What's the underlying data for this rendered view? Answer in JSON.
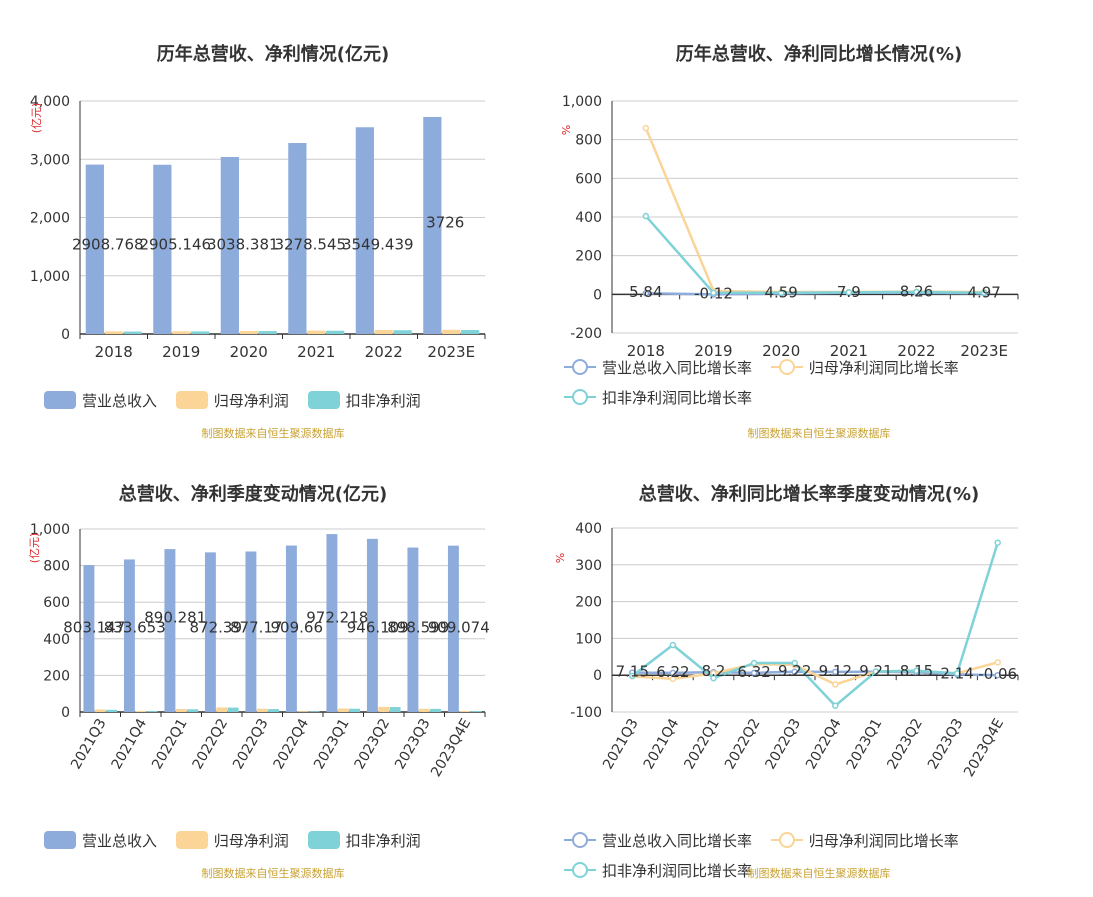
{
  "footer": "制图数据来自恒生聚源数据库",
  "colors": {
    "revenue": "#8eacdb",
    "netprofit": "#fbd497",
    "deducted": "#7fd2d8",
    "grid": "#cccccc",
    "axis": "#333333",
    "unit": "#e0262b"
  },
  "charts": [
    {
      "id": "annual_amount",
      "title": "历年总营收、净利情况(亿元)",
      "unit": "(亿元)",
      "legend": [
        "营业总收入",
        "归母净利润",
        "扣非净利润"
      ]
    },
    {
      "id": "annual_growth",
      "title": "历年总营收、净利同比增长情况(%)",
      "unit": "%",
      "legend": [
        "营业总收入同比增长率",
        "归母净利润同比增长率",
        "扣非净利润同比增长率"
      ]
    },
    {
      "id": "quarter_amount",
      "title": "总营收、净利季度变动情况(亿元)",
      "unit": "(亿元)",
      "legend": [
        "营业总收入",
        "归母净利润",
        "扣非净利润"
      ]
    },
    {
      "id": "quarter_growth",
      "title": "总营收、净利同比增长率季度变动情况(%)",
      "unit": "%",
      "legend": [
        "营业总收入同比增长率",
        "归母净利润同比增长率",
        "扣非净利润同比增长率"
      ]
    }
  ],
  "chart_data": [
    {
      "type": "bar",
      "title": "历年总营收、净利情况(亿元)",
      "ylabel": "(亿元)",
      "categories": [
        "2018",
        "2019",
        "2020",
        "2021",
        "2022",
        "2023E"
      ],
      "ylim": [
        0,
        4000
      ],
      "yticks": [
        "0",
        "1,000",
        "2,000",
        "3,000",
        "4,000"
      ],
      "ytick_values": [
        0,
        1000,
        2000,
        3000,
        4000
      ],
      "series": [
        {
          "name": "营业总收入",
          "values": [
            2908.768,
            2905.146,
            3038.381,
            3278.545,
            3549.439,
            3726
          ],
          "labels": [
            "2908.768",
            "2905.146",
            "3038.381",
            "3278.545",
            "3549.439",
            "3726"
          ]
        },
        {
          "name": "归母净利润",
          "values": [
            45,
            46,
            53,
            58,
            68,
            72
          ]
        },
        {
          "name": "扣非净利润",
          "values": [
            42,
            44,
            50,
            56,
            65,
            68
          ]
        }
      ],
      "grid": true,
      "legend_position": "bottom"
    },
    {
      "type": "line",
      "title": "历年总营收、净利同比增长情况(%)",
      "ylabel": "%",
      "categories": [
        "2018",
        "2019",
        "2020",
        "2021",
        "2022",
        "2023E"
      ],
      "ylim": [
        -200,
        1000
      ],
      "yticks": [
        "-200",
        "0",
        "200",
        "400",
        "600",
        "800",
        "1,000"
      ],
      "ytick_values": [
        -200,
        0,
        200,
        400,
        600,
        800,
        1000
      ],
      "series": [
        {
          "name": "营业总收入同比增长率",
          "values": [
            5.84,
            -0.12,
            4.59,
            7.9,
            8.26,
            4.97
          ],
          "labels": [
            "5.84",
            "-0.12",
            "4.59",
            "7.9",
            "8.26",
            "4.97"
          ]
        },
        {
          "name": "归母净利润同比增长率",
          "values": [
            860,
            18,
            12,
            12,
            14,
            12
          ]
        },
        {
          "name": "扣非净利润同比增长率",
          "values": [
            405,
            8,
            8,
            10,
            12,
            8
          ]
        }
      ],
      "grid": true,
      "legend_position": "bottom"
    },
    {
      "type": "bar",
      "title": "总营收、净利季度变动情况(亿元)",
      "ylabel": "(亿元)",
      "categories": [
        "2021Q3",
        "2021Q4",
        "2022Q1",
        "2022Q2",
        "2022Q3",
        "2022Q4",
        "2023Q1",
        "2023Q2",
        "2023Q3",
        "2023Q4E"
      ],
      "ylim": [
        0,
        1000
      ],
      "yticks": [
        "0",
        "200",
        "400",
        "600",
        "800",
        "1,000"
      ],
      "ytick_values": [
        0,
        200,
        400,
        600,
        800,
        1000
      ],
      "series": [
        {
          "name": "营业总收入",
          "values": [
            803.147,
            833.653,
            890.281,
            872.39,
            877.17,
            909.66,
            972.218,
            946.109,
            898.599,
            909.074
          ],
          "labels": [
            "803.147",
            "833.653",
            "890.281",
            "872.39",
            "877.17",
            "909.66",
            "972.218",
            "946.109",
            "898.599",
            "909.074"
          ]
        },
        {
          "name": "归母净利润",
          "values": [
            14,
            6,
            16,
            25,
            18,
            4,
            19,
            28,
            18,
            6
          ]
        },
        {
          "name": "扣非净利润",
          "values": [
            12,
            5,
            15,
            24,
            16,
            3,
            18,
            27,
            17,
            5
          ]
        }
      ],
      "grid": true,
      "legend_position": "bottom"
    },
    {
      "type": "line",
      "title": "总营收、净利同比增长率季度变动情况(%)",
      "ylabel": "%",
      "categories": [
        "2021Q3",
        "2021Q4",
        "2022Q1",
        "2022Q2",
        "2022Q3",
        "2022Q4",
        "2023Q1",
        "2023Q2",
        "2023Q3",
        "2023Q4E"
      ],
      "ylim": [
        -100,
        400
      ],
      "yticks": [
        "-100",
        "0",
        "100",
        "200",
        "300",
        "400"
      ],
      "ytick_values": [
        -100,
        0,
        100,
        200,
        300,
        400
      ],
      "series": [
        {
          "name": "营业总收入同比增长率",
          "values": [
            7.15,
            6.22,
            8.2,
            6.32,
            9.22,
            9.12,
            9.21,
            8.15,
            2.14,
            -0.06
          ],
          "labels": [
            "7.15",
            "6.22",
            "8.2",
            "6.32",
            "9.22",
            "9.12",
            "9.21",
            "8.15",
            "2.14",
            "-0.06"
          ]
        },
        {
          "name": "归母净利润同比增长率",
          "values": [
            -3,
            -10,
            5,
            30,
            28,
            -25,
            10,
            12,
            5,
            35
          ]
        },
        {
          "name": "扣非净利润同比增长率",
          "values": [
            -2,
            82,
            -8,
            33,
            33,
            -83,
            10,
            12,
            5,
            360
          ]
        }
      ],
      "grid": true,
      "legend_position": "bottom"
    }
  ]
}
